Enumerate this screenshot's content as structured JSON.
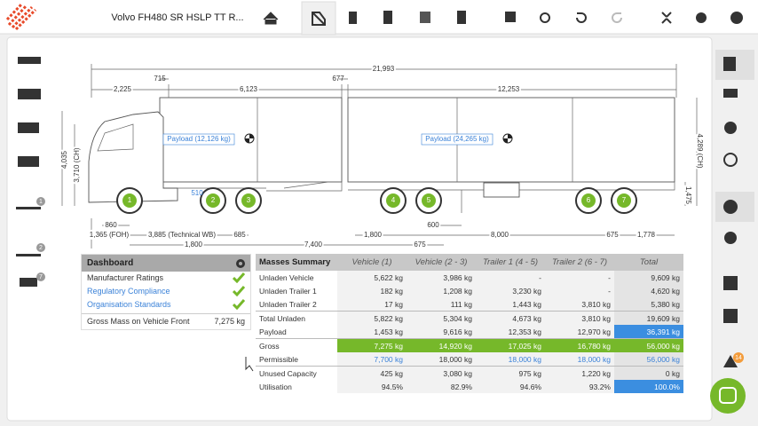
{
  "header": {
    "title": "Volvo FH480 SR HSLP TT R..."
  },
  "left_badges": [
    "1",
    "2",
    "7"
  ],
  "alert_badge": "14",
  "drawing": {
    "dimensions": [
      "21,993",
      "715",
      "677",
      "2,225",
      "6,123",
      "12,253",
      "4,035",
      "3,710 (CH)",
      "4,289 (CH)",
      "1,475",
      "860",
      "1,365 (FOH)",
      "3,885 (Technical WB)",
      "685",
      "1,800",
      "7,400",
      "675",
      "1,800",
      "600",
      "8,000",
      "675",
      "1,778",
      "510"
    ],
    "payloads": [
      "Payload (12,126 kg)",
      "Payload (24,265 kg)"
    ],
    "axles": [
      "1",
      "2",
      "3",
      "4",
      "5",
      "6",
      "7"
    ]
  },
  "dashboard": {
    "title": "Dashboard",
    "items": [
      "Manufacturer Ratings",
      "Regulatory Compliance",
      "Organisation Standards"
    ],
    "gross_front": {
      "label": "Gross Mass on Vehicle Front",
      "value": "7,275 kg"
    }
  },
  "table": {
    "header": [
      "Masses Summary",
      "Vehicle (1)",
      "Vehicle (2 - 3)",
      "Trailer 1 (4 - 5)",
      "Trailer 2 (6 - 7)",
      "Total"
    ],
    "rows": [
      [
        "Unladen Vehicle",
        "5,622 kg",
        "3,986 kg",
        "-",
        "-",
        "9,609 kg"
      ],
      [
        "Unladen Trailer 1",
        "182 kg",
        "1,208 kg",
        "3,230 kg",
        "-",
        "4,620 kg"
      ],
      [
        "Unladen Trailer 2",
        "17 kg",
        "111 kg",
        "1,443 kg",
        "3,810 kg",
        "5,380 kg"
      ],
      [
        "Total Unladen",
        "5,822 kg",
        "5,304 kg",
        "4,673 kg",
        "3,810 kg",
        "19,609 kg"
      ],
      [
        "Payload",
        "1,453 kg",
        "9,616 kg",
        "12,353 kg",
        "12,970 kg",
        "36,391 kg"
      ],
      [
        "Gross",
        "7,275 kg",
        "14,920 kg",
        "17,025 kg",
        "16,780 kg",
        "56,000 kg"
      ],
      [
        "Permissible",
        "7,700 kg",
        "18,000 kg",
        "18,000 kg",
        "18,000 kg",
        "56,000 kg"
      ],
      [
        "Unused Capacity",
        "425 kg",
        "3,080 kg",
        "975 kg",
        "1,220 kg",
        "0 kg"
      ],
      [
        "Utilisation",
        "94.5%",
        "82.9%",
        "94.6%",
        "93.2%",
        "100.0%"
      ]
    ]
  }
}
